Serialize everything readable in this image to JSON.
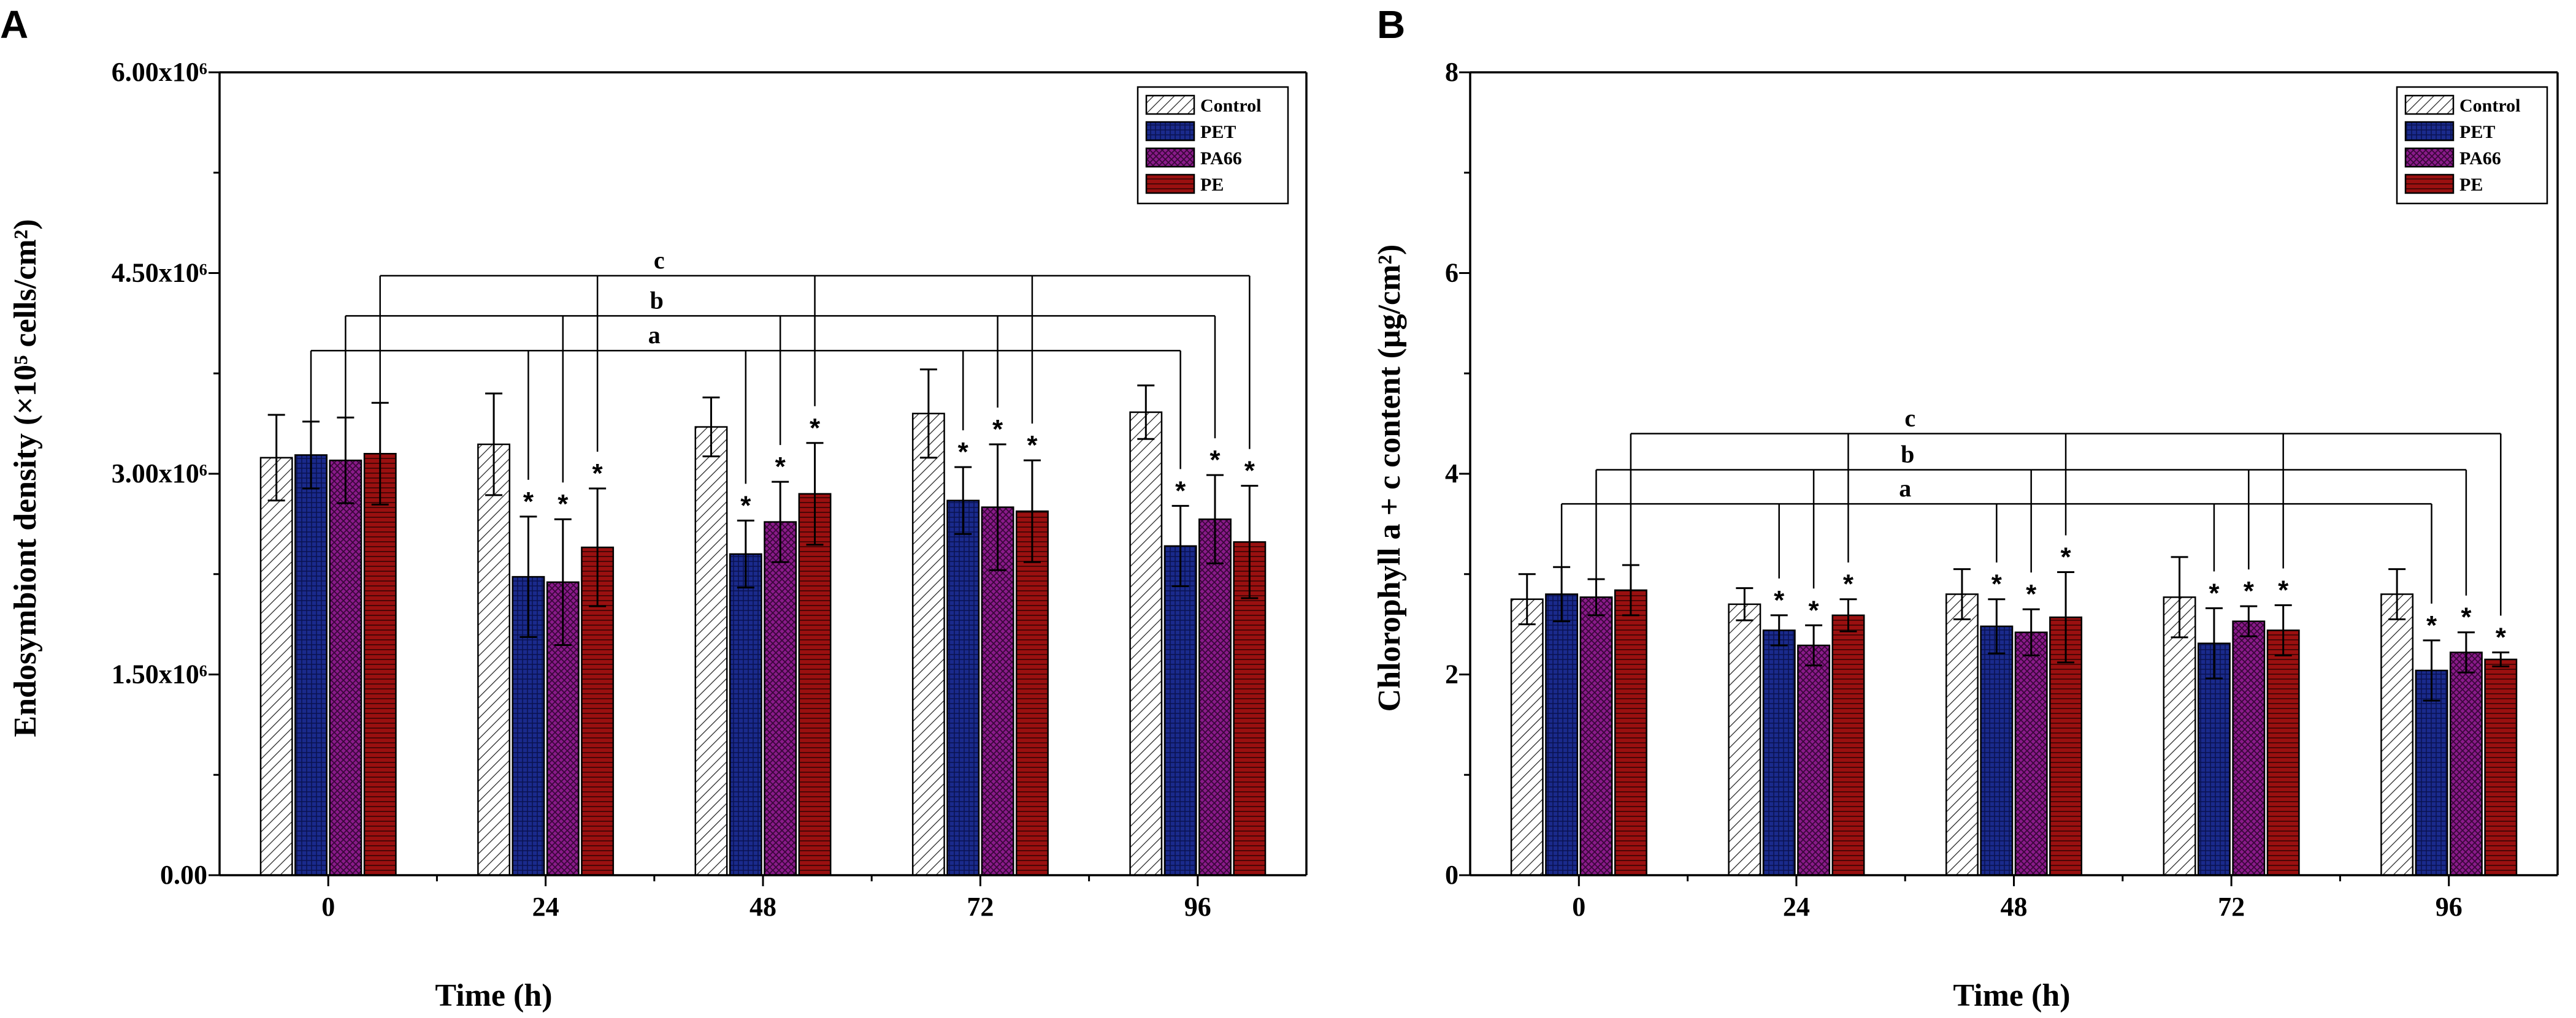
{
  "chart_data": [
    {
      "type": "bar",
      "panel": "A",
      "categories": [
        "0",
        "24",
        "48",
        "72",
        "96"
      ],
      "xlabel": "Time (h)",
      "ylabel": "Endosymbiont density (×10⁵ cells/cm²)",
      "ylim": [
        0,
        6000000
      ],
      "yticks": [
        {
          "value": 0,
          "label": "0.00"
        },
        {
          "value": 1500000,
          "label": "1.50x10⁶"
        },
        {
          "value": 3000000,
          "label": "3.00x10⁶"
        },
        {
          "value": 4500000,
          "label": "4.50x10⁶"
        },
        {
          "value": 6000000,
          "label": "6.00x10⁶"
        }
      ],
      "legend_position": "top-right",
      "series": [
        {
          "name": "Control",
          "values": [
            3120000,
            3220000,
            3350000,
            3450000,
            3460000
          ],
          "errors": [
            320000,
            380000,
            220000,
            330000,
            200000
          ],
          "stars": [
            false,
            false,
            false,
            false,
            false
          ]
        },
        {
          "name": "PET",
          "values": [
            3140000,
            2230000,
            2400000,
            2800000,
            2460000
          ],
          "errors": [
            250000,
            450000,
            250000,
            250000,
            300000
          ],
          "stars": [
            false,
            true,
            true,
            true,
            true
          ]
        },
        {
          "name": "PA66",
          "values": [
            3100000,
            2190000,
            2640000,
            2750000,
            2660000
          ],
          "errors": [
            320000,
            470000,
            300000,
            470000,
            330000
          ],
          "stars": [
            false,
            true,
            true,
            true,
            true
          ]
        },
        {
          "name": "PE",
          "values": [
            3150000,
            2450000,
            2850000,
            2720000,
            2490000
          ],
          "errors": [
            380000,
            440000,
            380000,
            380000,
            420000
          ],
          "stars": [
            false,
            true,
            true,
            true,
            true
          ]
        }
      ],
      "significance": [
        {
          "label": "c",
          "series": 3,
          "level": 4480000
        },
        {
          "label": "b",
          "series": 2,
          "level": 4180000
        },
        {
          "label": "a",
          "series": 1,
          "level": 3920000
        }
      ]
    },
    {
      "type": "bar",
      "panel": "B",
      "categories": [
        "0",
        "24",
        "48",
        "72",
        "96"
      ],
      "xlabel": "Time (h)",
      "ylabel": "Chlorophyll a + c content (μg/cm²)",
      "ylim": [
        0,
        8
      ],
      "yticks": [
        {
          "value": 0,
          "label": "0"
        },
        {
          "value": 2,
          "label": "2"
        },
        {
          "value": 4,
          "label": "4"
        },
        {
          "value": 6,
          "label": "6"
        },
        {
          "value": 8,
          "label": "8"
        }
      ],
      "legend_position": "top-right",
      "series": [
        {
          "name": "Control",
          "values": [
            2.75,
            2.7,
            2.8,
            2.77,
            2.8
          ],
          "errors": [
            0.25,
            0.16,
            0.25,
            0.4,
            0.25
          ],
          "stars": [
            false,
            false,
            false,
            false,
            false
          ]
        },
        {
          "name": "PET",
          "values": [
            2.8,
            2.44,
            2.48,
            2.31,
            2.04
          ],
          "errors": [
            0.27,
            0.15,
            0.27,
            0.35,
            0.3
          ],
          "stars": [
            false,
            true,
            true,
            true,
            true
          ]
        },
        {
          "name": "PA66",
          "values": [
            2.77,
            2.29,
            2.42,
            2.53,
            2.22
          ],
          "errors": [
            0.18,
            0.2,
            0.23,
            0.15,
            0.2
          ],
          "stars": [
            false,
            true,
            true,
            true,
            true
          ]
        },
        {
          "name": "PE",
          "values": [
            2.84,
            2.59,
            2.57,
            2.44,
            2.15
          ],
          "errors": [
            0.25,
            0.16,
            0.45,
            0.25,
            0.07
          ],
          "stars": [
            false,
            true,
            true,
            true,
            true
          ]
        }
      ],
      "significance": [
        {
          "label": "c",
          "series": 3,
          "level": 4.4
        },
        {
          "label": "b",
          "series": 2,
          "level": 4.04
        },
        {
          "label": "a",
          "series": 1,
          "level": 3.7
        }
      ]
    }
  ],
  "colors": {
    "Control": "#ffffff",
    "PET": "#1a2a8c",
    "PA66": "#8a1a8a",
    "PE": "#9a1010",
    "axis": "#000000"
  }
}
